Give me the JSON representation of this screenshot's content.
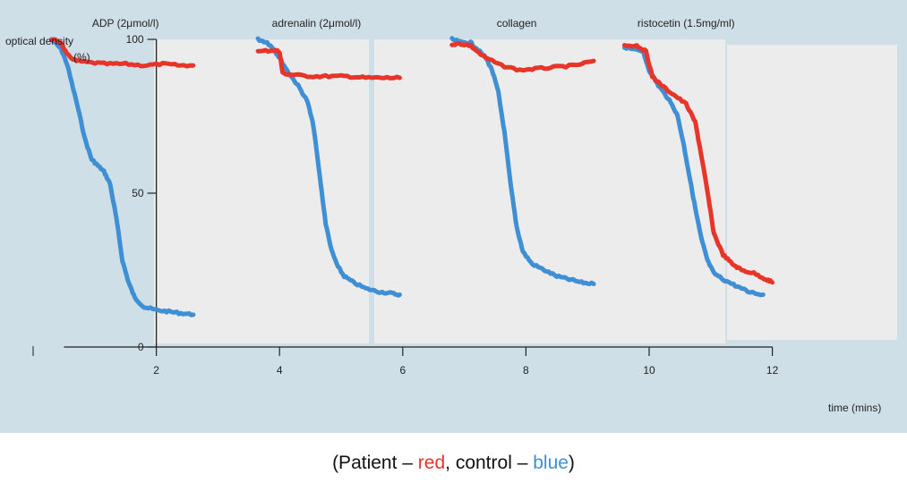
{
  "caption": {
    "open": "(Patient – ",
    "patient_word": "red",
    "mid": ", control – ",
    "control_word": "blue",
    "close": ")"
  },
  "colors": {
    "patient": "#e8352a",
    "control": "#3f8fd4",
    "panel_bg": "#cfdfe8",
    "plot_bg": "#ebeceb"
  },
  "chart_data": {
    "type": "line",
    "ylabel_line1": "optical density",
    "ylabel_line2": "(%)",
    "xlabel": "time (mins)",
    "xlim": [
      0,
      12
    ],
    "ylim": [
      0,
      100
    ],
    "xticks": [
      2,
      4,
      6,
      8,
      10,
      12
    ],
    "xtick_labels": [
      "2",
      "4",
      "6",
      "8",
      "10",
      "12"
    ],
    "yticks": [
      0,
      50,
      100
    ],
    "ytick_labels": [
      "0",
      "50",
      "100"
    ],
    "panels": [
      {
        "label": "ADP (2μmol/l)",
        "label_x": 1.5,
        "series": [
          {
            "name": "control",
            "color": "#3f8fd4",
            "x": [
              0.3,
              0.45,
              0.55,
              0.7,
              0.85,
              0.95,
              1.05,
              1.15,
              1.25,
              1.35,
              1.45,
              1.55,
              1.65,
              1.8,
              2.0,
              2.2,
              2.4,
              2.6
            ],
            "y": [
              100,
              97,
              92,
              80,
              67,
              61,
              59,
              57,
              53,
              42,
              28,
              21,
              16,
              13,
              12,
              11.5,
              11,
              10.5
            ]
          },
          {
            "name": "patient",
            "color": "#e8352a",
            "x": [
              0.3,
              0.45,
              0.55,
              0.7,
              0.9,
              1.2,
              1.5,
              1.8,
              2.1,
              2.4,
              2.6
            ],
            "y": [
              100,
              99,
              95,
              93,
              92.5,
              92,
              92,
              91.5,
              92,
              91.5,
              91.5
            ]
          }
        ]
      },
      {
        "label": "adrenalin (2μmol/l)",
        "label_x": 4.6,
        "series": [
          {
            "name": "control",
            "color": "#3f8fd4",
            "x": [
              3.65,
              3.8,
              3.9,
              4.0,
              4.15,
              4.3,
              4.45,
              4.55,
              4.65,
              4.75,
              4.85,
              4.95,
              5.05,
              5.2,
              5.4,
              5.6,
              5.8,
              5.95
            ],
            "y": [
              100,
              99,
              97,
              94,
              89,
              85,
              80,
              72,
              56,
              40,
              31,
              26,
              23,
              21,
              19,
              18,
              17.5,
              17
            ]
          },
          {
            "name": "patient",
            "color": "#e8352a",
            "x": [
              3.65,
              3.9,
              4.0,
              4.05,
              4.2,
              4.5,
              4.8,
              5.1,
              5.4,
              5.7,
              5.95
            ],
            "y": [
              96,
              96.5,
              96,
              89,
              88.5,
              88,
              88,
              88,
              87.5,
              87.5,
              87.5
            ]
          }
        ]
      },
      {
        "label": "collagen",
        "label_x": 7.85,
        "series": [
          {
            "name": "control",
            "color": "#3f8fd4",
            "x": [
              6.8,
              6.95,
              7.1,
              7.2,
              7.35,
              7.45,
              7.55,
              7.65,
              7.75,
              7.85,
              7.95,
              8.1,
              8.3,
              8.5,
              8.7,
              8.9,
              9.1
            ],
            "y": [
              100,
              99,
              99,
              97,
              94,
              90,
              83,
              70,
              53,
              39,
              31,
              27,
              25,
              23,
              22,
              21,
              20.5
            ]
          },
          {
            "name": "patient",
            "color": "#e8352a",
            "x": [
              6.8,
              6.95,
              7.1,
              7.3,
              7.6,
              7.9,
              8.2,
              8.5,
              8.8,
              9.1
            ],
            "y": [
              98.5,
              98.5,
              98,
              94.5,
              91.5,
              90,
              90.5,
              91,
              91.5,
              93
            ]
          }
        ]
      },
      {
        "label": "ristocetin (1.5mg/ml)",
        "label_x": 10.6,
        "series": [
          {
            "name": "control",
            "color": "#3f8fd4",
            "x": [
              9.6,
              9.8,
              9.9,
              10.0,
              10.15,
              10.3,
              10.45,
              10.55,
              10.65,
              10.75,
              10.85,
              10.95,
              11.05,
              11.2,
              11.4,
              11.6,
              11.85
            ],
            "y": [
              97,
              97,
              96,
              90,
              85,
              81,
              76,
              67,
              56,
              45,
              35,
              28,
              24,
              22,
              20,
              18,
              17
            ]
          },
          {
            "name": "patient",
            "color": "#e8352a",
            "x": [
              9.6,
              9.8,
              9.95,
              10.05,
              10.2,
              10.4,
              10.6,
              10.75,
              10.85,
              10.95,
              11.05,
              11.2,
              11.35,
              11.5,
              11.7,
              11.9,
              12.0
            ],
            "y": [
              98,
              98,
              96,
              88,
              85,
              82,
              79,
              73,
              62,
              50,
              37,
              30,
              27,
              25,
              24,
              22,
              21
            ]
          }
        ]
      }
    ]
  }
}
